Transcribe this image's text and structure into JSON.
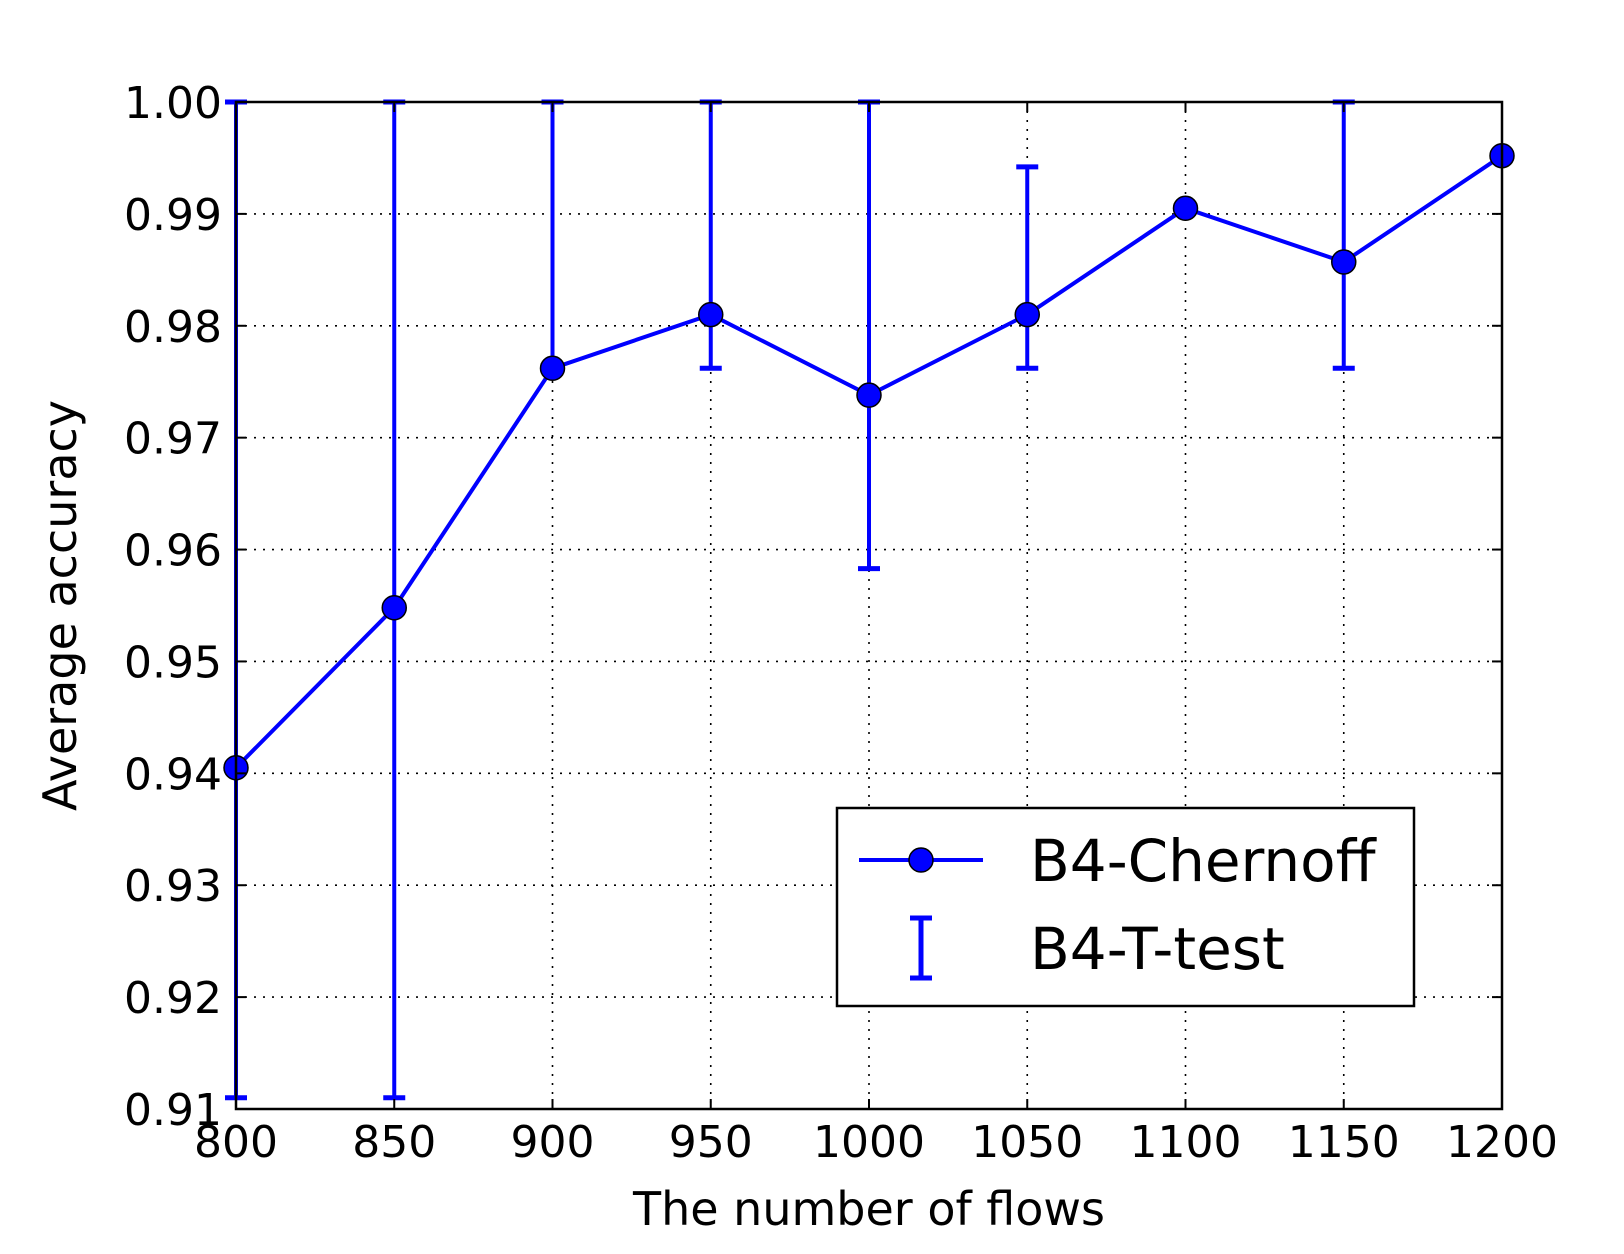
{
  "chart_data": {
    "type": "line",
    "xlabel": "The number of flows",
    "ylabel": "Average accuracy",
    "xlim": [
      800,
      1200
    ],
    "ylim": [
      0.91,
      1.0
    ],
    "x_ticks": [
      "800",
      "850",
      "900",
      "950",
      "1000",
      "1050",
      "1100",
      "1150",
      "1200"
    ],
    "y_ticks": [
      "0.91",
      "0.92",
      "0.93",
      "0.94",
      "0.95",
      "0.96",
      "0.97",
      "0.98",
      "0.99",
      "1.00"
    ],
    "grid": true,
    "legend_position": "lower-right",
    "color": "#0000ff",
    "series": [
      {
        "name": "B4-Chernoff",
        "kind": "line-with-markers",
        "x": [
          800,
          850,
          900,
          950,
          1000,
          1050,
          1100,
          1150,
          1200
        ],
        "y": [
          0.9405,
          0.9548,
          0.9762,
          0.981,
          0.9738,
          0.981,
          0.9905,
          0.9857,
          0.9952
        ]
      },
      {
        "name": "B4-T-test",
        "kind": "errorbar",
        "x": [
          800,
          850,
          900,
          950,
          1000,
          1050,
          1100,
          1150,
          1200
        ],
        "lower": [
          0.911,
          0.911,
          0.9762,
          0.9762,
          0.9583,
          0.9762,
          1.0,
          0.9762,
          1.0
        ],
        "upper": [
          1.0,
          1.0,
          1.0,
          1.0,
          1.0,
          0.9942,
          1.0,
          1.0,
          1.0
        ]
      }
    ]
  }
}
